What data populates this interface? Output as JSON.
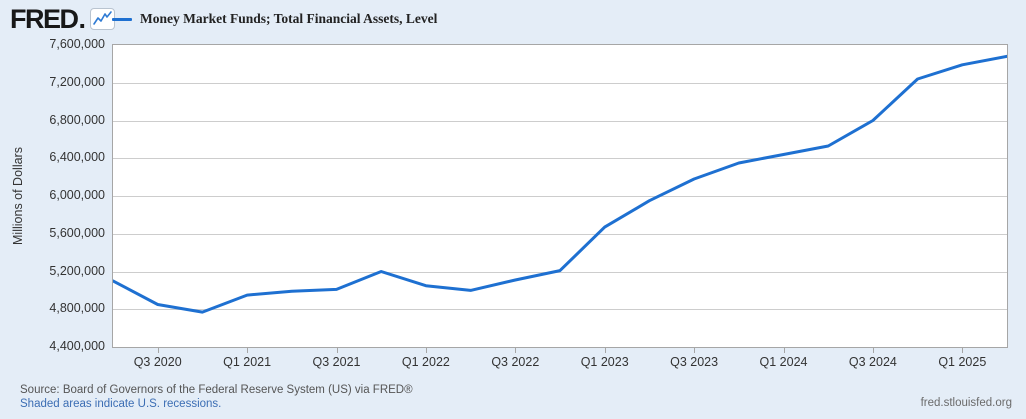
{
  "header": {
    "logo_text": "FRED",
    "logo_dot": ".",
    "chart_icon": "line-chart-icon"
  },
  "legend": {
    "series_label": "Money Market Funds; Total Financial Assets, Level"
  },
  "footer": {
    "source_line": "Source: Board of Governors of the Federal Reserve System (US) via FRED®",
    "recession_note": "Shaded areas indicate U.S. recessions.",
    "site_link": "fred.stlouisfed.org"
  },
  "chart_data": {
    "type": "line",
    "title": "Money Market Funds; Total Financial Assets, Level",
    "ylabel": "Millions of Dollars",
    "xlabel": "",
    "x": [
      "Q2 2020",
      "Q3 2020",
      "Q4 2020",
      "Q1 2021",
      "Q2 2021",
      "Q3 2021",
      "Q4 2021",
      "Q1 2022",
      "Q2 2022",
      "Q3 2022",
      "Q4 2022",
      "Q1 2023",
      "Q2 2023",
      "Q3 2023",
      "Q4 2023",
      "Q1 2024",
      "Q2 2024",
      "Q3 2024",
      "Q4 2024",
      "Q1 2025",
      "Q2 2025"
    ],
    "values": [
      5100000,
      4850000,
      4770000,
      4950000,
      4990000,
      5010000,
      5200000,
      5050000,
      5000000,
      5110000,
      5210000,
      5670000,
      5950000,
      6180000,
      6350000,
      6440000,
      6530000,
      6800000,
      7240000,
      7390000,
      7480000
    ],
    "x_tick_labels": [
      "Q3 2020",
      "Q1 2021",
      "Q3 2021",
      "Q1 2022",
      "Q3 2022",
      "Q1 2023",
      "Q3 2023",
      "Q1 2024",
      "Q3 2024",
      "Q1 2025"
    ],
    "x_tick_indices": [
      1,
      3,
      5,
      7,
      9,
      11,
      13,
      15,
      17,
      19
    ],
    "y_ticks": [
      4400000,
      4800000,
      5200000,
      5600000,
      6000000,
      6400000,
      6800000,
      7200000,
      7600000
    ],
    "y_tick_labels": [
      "4,400,000",
      "4,800,000",
      "5,200,000",
      "5,600,000",
      "6,000,000",
      "6,400,000",
      "6,800,000",
      "7,200,000",
      "7,600,000"
    ],
    "ylim": [
      4400000,
      7600000
    ],
    "grid": "horizontal",
    "legend_position": "top-left",
    "line_color": "#1e70d1"
  }
}
